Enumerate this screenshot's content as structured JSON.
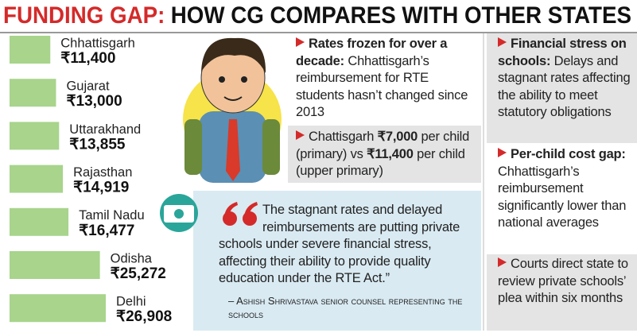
{
  "chart_data": {
    "type": "bar",
    "orientation": "horizontal",
    "title": {
      "highlight": "FUNDING GAP:",
      "text": "HOW CG COMPARES WITH OTHER STATES"
    },
    "categories": [
      "Chhattisgarh",
      "Gujarat",
      "Uttarakhand",
      "Rajasthan",
      "Tamil Nadu",
      "Odisha",
      "Delhi"
    ],
    "values": [
      11400,
      13000,
      13855,
      14919,
      16477,
      25272,
      26908
    ],
    "value_labels": [
      "₹11,400",
      "₹13,000",
      "₹13,855",
      "₹14,919",
      "₹16,477",
      "₹25,272",
      "₹26,908"
    ],
    "color": "#a8d48c",
    "title_color": "#d42a2a",
    "arrow_color": "#d42a2a"
  },
  "notes": {
    "middle": [
      {
        "lead": "Rates frozen for over a decade:",
        "text": "Chhattisgarh’s reimbursement for RTE students hasn’t changed since 2013"
      },
      {
        "parts": [
          "Chattisgarh ",
          "₹7,000",
          " per child (primary) vs ",
          "₹11,400",
          " per child (upper primary)"
        ]
      }
    ],
    "right": [
      {
        "lead": "Financial stress on schools:",
        "text": "Delays and stagnant rates affecting the ability to meet statutory obligations"
      },
      {
        "lead": "Per-child cost gap:",
        "text": "Chhattisgarh’s reimbursement significantly lower than national averages"
      },
      {
        "text": "Courts direct state to review private schools’ plea within six months"
      }
    ]
  },
  "quote": {
    "text": "The stagnant rates and delayed reimbursements are putting private schools under severe financial stress, affecting their ability to provide quality education under the RTE Act.”",
    "attribution": "– Ashish Shrivastava senior counsel representing the schools"
  }
}
